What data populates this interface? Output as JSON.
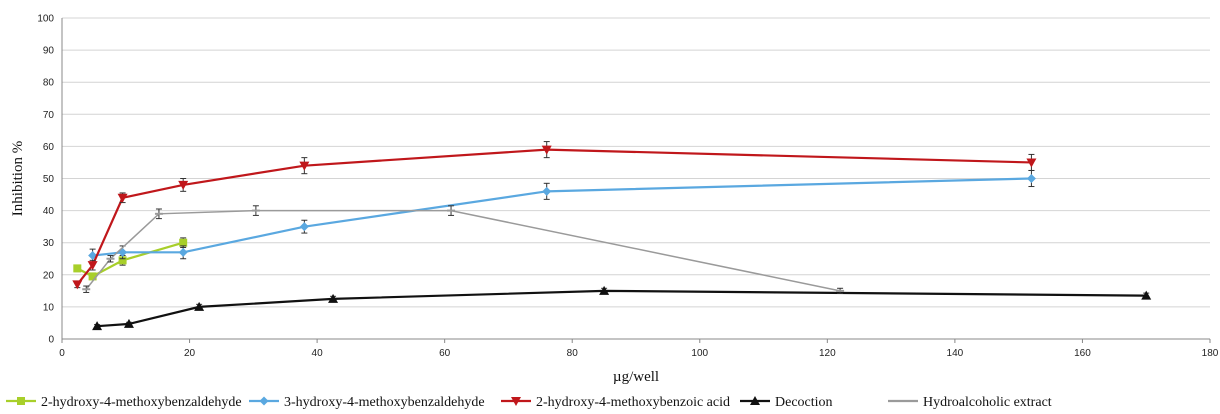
{
  "chart_data": {
    "type": "line",
    "xlabel": "µg/well",
    "ylabel": "Inhibition %",
    "xlim": [
      0,
      180
    ],
    "ylim": [
      0,
      100
    ],
    "xticks": [
      0,
      20,
      40,
      60,
      80,
      100,
      120,
      140,
      160,
      180
    ],
    "yticks": [
      0,
      10,
      20,
      30,
      40,
      50,
      60,
      70,
      80,
      90,
      100
    ],
    "grid": true,
    "legend_position": "bottom",
    "series": [
      {
        "name": "2-hydroxy-4-methoxybenzaldehyde",
        "color": "#a8cf2a",
        "marker": "square",
        "points": [
          {
            "x": 2.4,
            "y": 22,
            "err": 1
          },
          {
            "x": 4.8,
            "y": 19.5,
            "err": 1
          },
          {
            "x": 9.5,
            "y": 24.5,
            "err": 1.5
          },
          {
            "x": 19,
            "y": 30,
            "err": 1.5
          }
        ]
      },
      {
        "name": "3-hydroxy-4-methoxybenzaldehyde",
        "color": "#5aa8e0",
        "marker": "diamond",
        "points": [
          {
            "x": 4.8,
            "y": 26,
            "err": 2
          },
          {
            "x": 9.5,
            "y": 27,
            "err": 2
          },
          {
            "x": 19,
            "y": 27,
            "err": 2
          },
          {
            "x": 38,
            "y": 35,
            "err": 2
          },
          {
            "x": 76,
            "y": 46,
            "err": 2.5
          },
          {
            "x": 152,
            "y": 50,
            "err": 2.5
          }
        ]
      },
      {
        "name": "2-hydroxy-4-methoxybenzoic acid",
        "color": "#c0171b",
        "marker": "triangle-down",
        "points": [
          {
            "x": 2.4,
            "y": 17,
            "err": 1
          },
          {
            "x": 4.8,
            "y": 23,
            "err": 1.5
          },
          {
            "x": 9.5,
            "y": 44,
            "err": 1.5
          },
          {
            "x": 19,
            "y": 48,
            "err": 2
          },
          {
            "x": 38,
            "y": 54,
            "err": 2.5
          },
          {
            "x": 76,
            "y": 59,
            "err": 2.5
          },
          {
            "x": 152,
            "y": 55,
            "err": 2.5
          }
        ]
      },
      {
        "name": "Decoction",
        "color": "#111111",
        "marker": "triangle-up",
        "points": [
          {
            "x": 5.5,
            "y": 4,
            "err": 0.5
          },
          {
            "x": 10.5,
            "y": 4.7,
            "err": 0.5
          },
          {
            "x": 21.5,
            "y": 10,
            "err": 0.8
          },
          {
            "x": 42.5,
            "y": 12.5,
            "err": 0.8
          },
          {
            "x": 85,
            "y": 15,
            "err": 0.8
          },
          {
            "x": 170,
            "y": 13.5,
            "err": 0.8
          }
        ]
      },
      {
        "name": "Hydroalcoholic extract",
        "color": "#9a9a9a",
        "marker": "tick",
        "points": [
          {
            "x": 3.8,
            "y": 15.5,
            "err": 1
          },
          {
            "x": 7.6,
            "y": 25,
            "err": 1
          },
          {
            "x": 15.2,
            "y": 39,
            "err": 1.5
          },
          {
            "x": 30.4,
            "y": 40,
            "err": 1.5
          },
          {
            "x": 61,
            "y": 40,
            "err": 1.5
          },
          {
            "x": 122,
            "y": 15,
            "err": 0.8
          }
        ]
      }
    ]
  }
}
